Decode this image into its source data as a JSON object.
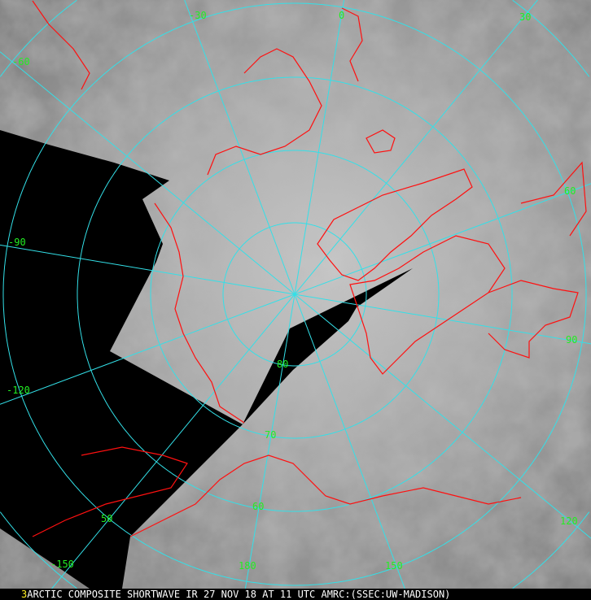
{
  "image": {
    "frame_number": "3",
    "caption": "ARCTIC COMPOSITE SHORTWAVE IR 27 NOV 18 AT 11 UTC AMRC:(SSEC:UW-MADISON)",
    "projection": "polar stereographic",
    "colors": {
      "grid": "#33e0e8",
      "coastline": "#ff1010",
      "labels": "#22ee22",
      "frame_number": "#ffee22",
      "no_data": "#000000"
    }
  },
  "longitude_labels": [
    "-30",
    "0",
    "30",
    "-60",
    "60",
    "-90",
    "90",
    "-120",
    "120",
    "-150",
    "150",
    "180"
  ],
  "latitude_labels": [
    "80",
    "70",
    "60",
    "50"
  ]
}
